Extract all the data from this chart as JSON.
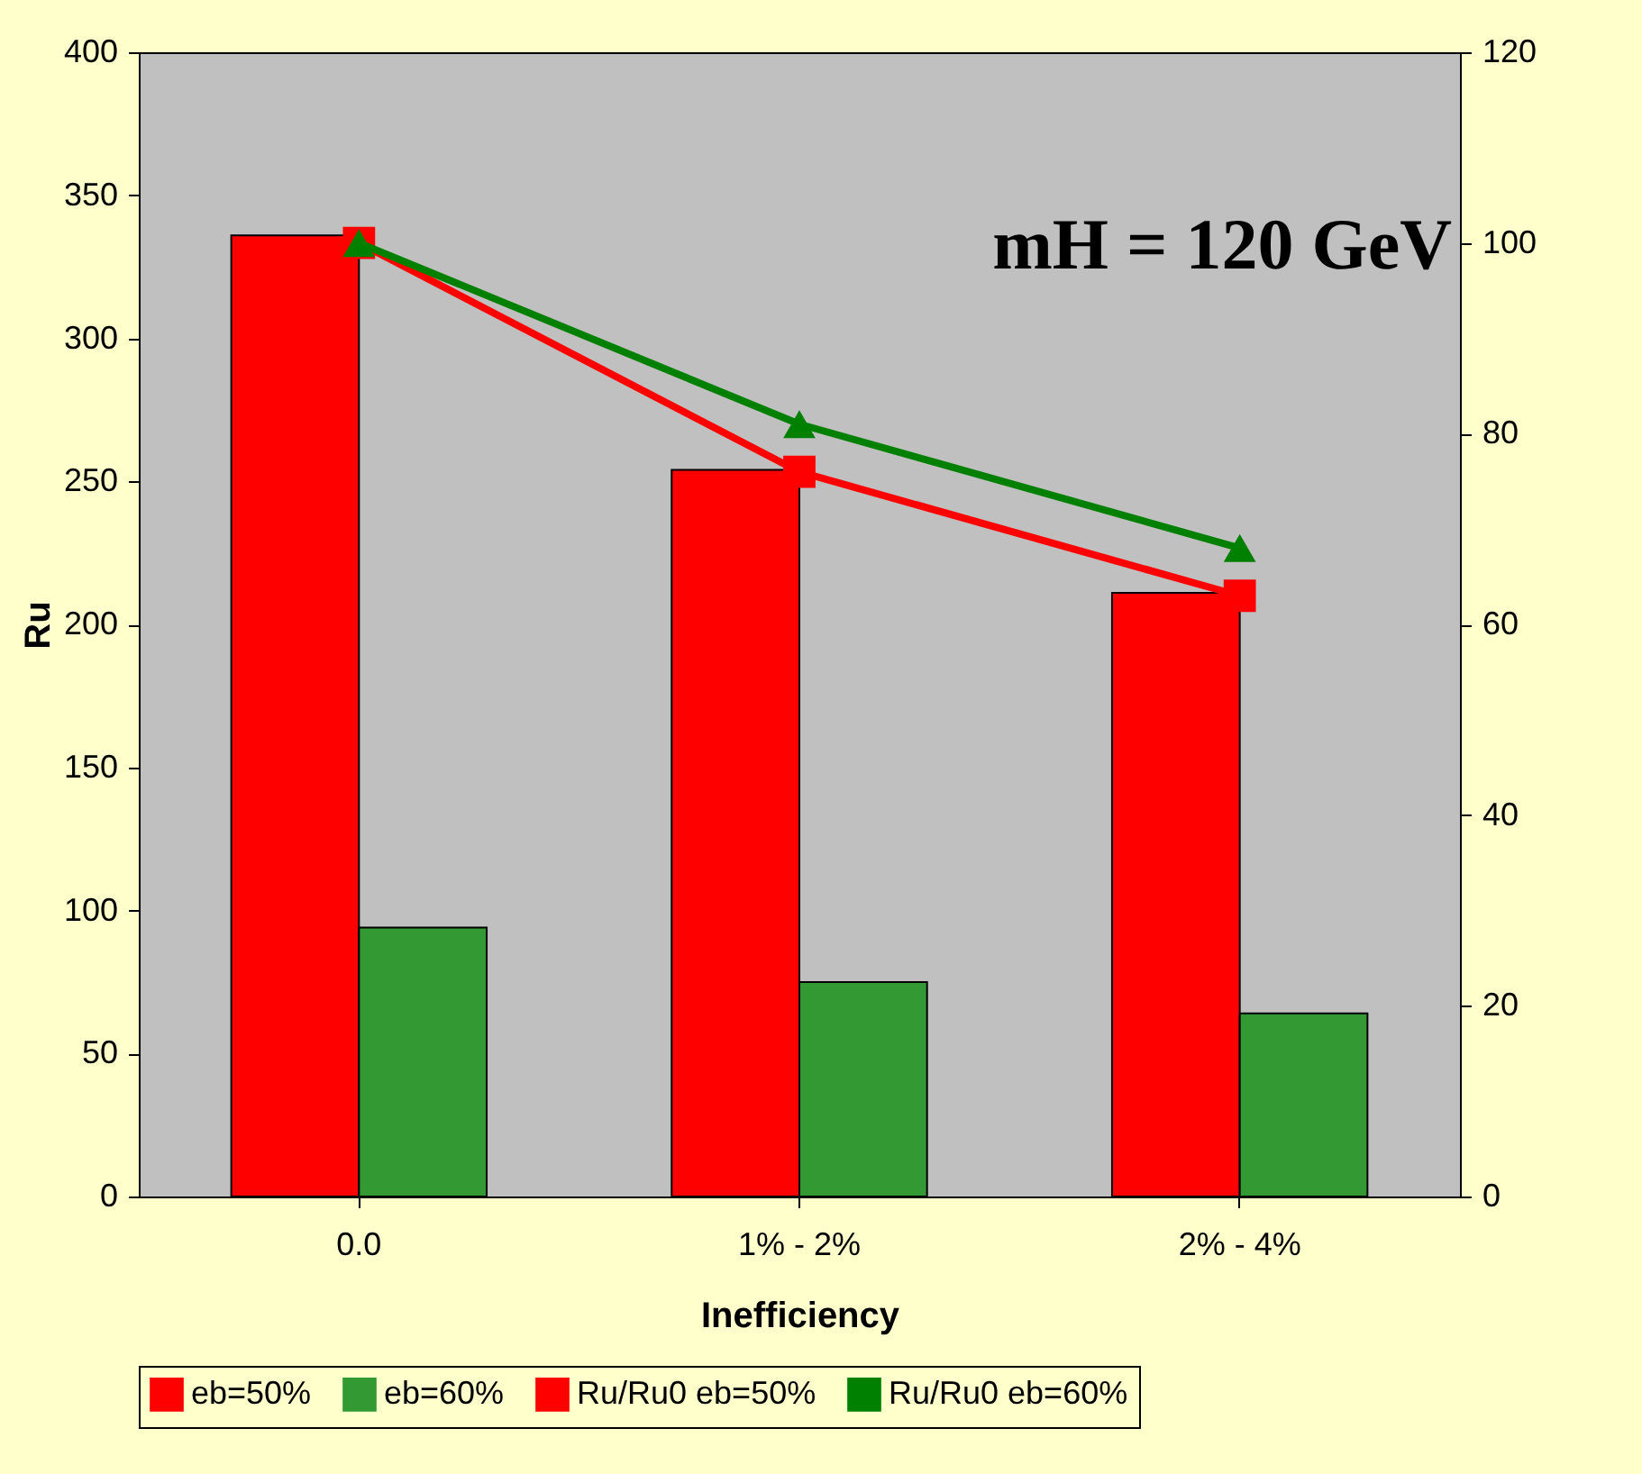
{
  "chart_data": {
    "type": "bar",
    "categories": [
      "0.0",
      "1% - 2%",
      "2% - 4%"
    ],
    "xlabel": "Inefficiency",
    "ylabel": "Ru",
    "series": [
      {
        "name": "eb=50%",
        "color": "#ff0000",
        "values": [
          336,
          254,
          211
        ]
      },
      {
        "name": "eb=60%",
        "color": "#339933",
        "values": [
          94,
          75,
          64
        ]
      },
      {
        "name": "Ru/Ru0 eb=50%",
        "type": "line",
        "axis": "y2",
        "marker": "square",
        "color": "#ff0000",
        "values": [
          100,
          76,
          63
        ]
      },
      {
        "name": "Ru/Ru0 eb=60%",
        "type": "line",
        "axis": "y2",
        "marker": "triangle",
        "color": "#008000",
        "values": [
          100,
          81,
          68
        ]
      }
    ],
    "ylim": [
      0,
      400
    ],
    "yticks": [
      0,
      50,
      100,
      150,
      200,
      250,
      300,
      350,
      400
    ],
    "y2lim": [
      0,
      120
    ],
    "y2ticks": [
      0,
      20,
      40,
      60,
      80,
      100,
      120
    ],
    "annotations": [
      "mH = 120 GeV"
    ],
    "legend": "bottom",
    "grid": false
  }
}
